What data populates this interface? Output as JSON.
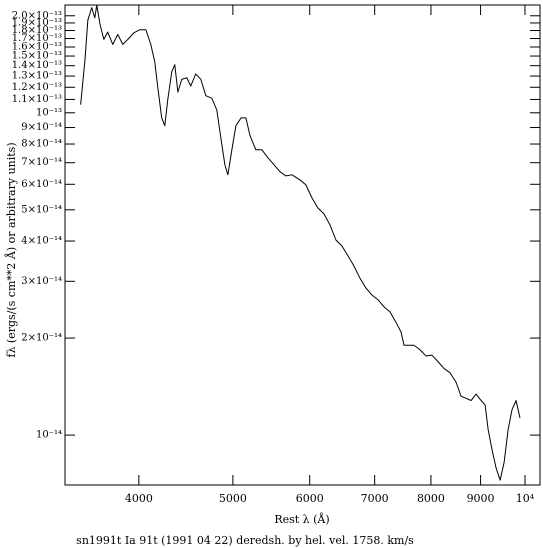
{
  "chart_data": {
    "type": "line",
    "xlabel": "Rest λ (Å)",
    "ylabel": "fλ (ergs/(s cm**2 Å) or arbitrary units)",
    "caption": "sn1991t Ia 91t (1991 04 22) deredsh. by hel. vel.  1758. km/s",
    "xlog": true,
    "ylog": true,
    "xlim": [
      3357,
      10363
    ],
    "ylim": [
      7e-15,
      2.16e-13
    ],
    "xticks": [
      4000,
      5000,
      6000,
      7000,
      8000,
      9000,
      {
        "value": 10000,
        "label": "10⁴"
      }
    ],
    "yticks": [
      {
        "value": 1e-14,
        "label": "10⁻¹⁴"
      },
      {
        "value": 2e-14,
        "label": "2×10⁻¹⁴"
      },
      {
        "value": 3e-14,
        "label": "3×10⁻¹⁴"
      },
      {
        "value": 4e-14,
        "label": "4×10⁻¹⁴"
      },
      {
        "value": 5e-14,
        "label": "5×10⁻¹⁴"
      },
      {
        "value": 6e-14,
        "label": "6×10⁻¹⁴"
      },
      {
        "value": 7e-14,
        "label": "7×10⁻¹⁴"
      },
      {
        "value": 8e-14,
        "label": "8×10⁻¹⁴"
      },
      {
        "value": 9e-14,
        "label": "9×10⁻¹⁴"
      },
      {
        "value": 1e-13,
        "label": "10⁻¹³"
      },
      {
        "value": 1.1e-13,
        "label": "1.1×10⁻¹³"
      },
      {
        "value": 1.2e-13,
        "label": "1.2×10⁻¹³"
      },
      {
        "value": 1.3e-13,
        "label": "1.3×10⁻¹³"
      },
      {
        "value": 1.4e-13,
        "label": "1.4×10⁻¹³"
      },
      {
        "value": 1.5e-13,
        "label": "1.5×10⁻¹³"
      },
      {
        "value": 1.6e-13,
        "label": "1.6×10⁻¹³"
      },
      {
        "value": 1.7e-13,
        "label": "1.7×10⁻¹³"
      },
      {
        "value": 1.8e-13,
        "label": "1.8×10⁻¹³"
      },
      {
        "value": 1.9e-13,
        "label": "1.9×10⁻¹³"
      },
      {
        "value": 2e-13,
        "label": "2.0×10⁻¹³"
      }
    ],
    "color": "#000000",
    "x": [
      3484,
      3520,
      3544,
      3577,
      3603,
      3620,
      3648,
      3681,
      3715,
      3760,
      3805,
      3850,
      3897,
      3953,
      4009,
      4067,
      4115,
      4154,
      4184,
      4223,
      4254,
      4284,
      4325,
      4356,
      4388,
      4429,
      4482,
      4524,
      4578,
      4634,
      4689,
      4756,
      4813,
      4859,
      4906,
      4941,
      4988,
      5036,
      5098,
      5157,
      5205,
      5279,
      5355,
      5434,
      5512,
      5592,
      5671,
      5753,
      5863,
      5945,
      6031,
      6117,
      6205,
      6295,
      6385,
      6477,
      6570,
      6663,
      6759,
      6856,
      6955,
      7055,
      7157,
      7260,
      7362,
      7451,
      7505,
      7576,
      7685,
      7795,
      7907,
      8020,
      8135,
      8252,
      8371,
      8491,
      8592,
      8695,
      8800,
      8905,
      9012,
      9098,
      9163,
      9250,
      9338,
      9428,
      9518,
      9608,
      9698,
      9790,
      9883
    ],
    "values": [
      1.06e-13,
      1.46e-13,
      1.94e-13,
      2.12e-13,
      1.97e-13,
      2.16e-13,
      1.88e-13,
      1.69e-13,
      1.78e-13,
      1.63e-13,
      1.75e-13,
      1.63e-13,
      1.69e-13,
      1.77e-13,
      1.81e-13,
      1.81e-13,
      1.63e-13,
      1.44e-13,
      1.196e-13,
      9.64e-14,
      9.12e-14,
      1.097e-13,
      1.34e-13,
      1.41e-13,
      1.16e-13,
      1.27e-13,
      1.285e-13,
      1.21e-13,
      1.32e-13,
      1.27e-13,
      1.13e-13,
      1.11e-13,
      1.02e-13,
      8.36e-14,
      6.9e-14,
      6.42e-14,
      7.68e-14,
      9.12e-14,
      9.64e-14,
      9.64e-14,
      8.54e-14,
      7.68e-14,
      7.68e-14,
      7.25e-14,
      6.9e-14,
      6.56e-14,
      6.37e-14,
      6.42e-14,
      6.19e-14,
      5.98e-14,
      5.45e-14,
      5.07e-14,
      4.86e-14,
      4.49e-14,
      4.03e-14,
      3.86e-14,
      3.6e-14,
      3.35e-14,
      3.07e-14,
      2.86e-14,
      2.72e-14,
      2.63e-14,
      2.5e-14,
      2.41e-14,
      2.24e-14,
      2.09e-14,
      1.9e-14,
      1.9e-14,
      1.9e-14,
      1.84e-14,
      1.76e-14,
      1.77e-14,
      1.69e-14,
      1.61e-14,
      1.56e-14,
      1.46e-14,
      1.32e-14,
      1.3e-14,
      1.28e-14,
      1.34e-14,
      1.28e-14,
      1.24e-14,
      1.04e-14,
      8.98e-15,
      7.9e-15,
      7.25e-15,
      8.24e-15,
      1.04e-14,
      1.2e-14,
      1.28e-14,
      1.13e-14
    ]
  }
}
